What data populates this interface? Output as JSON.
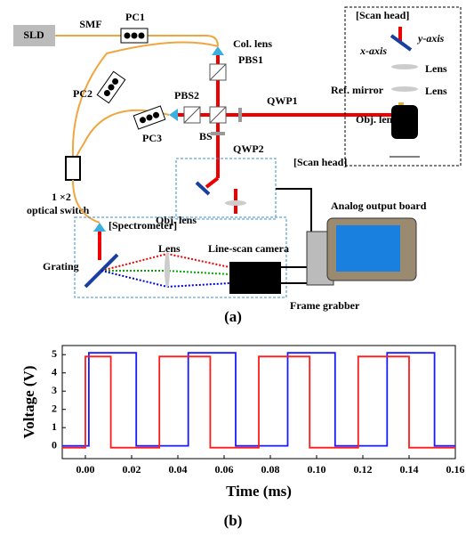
{
  "diagram": {
    "labels": {
      "sld": "SLD",
      "smf": "SMF",
      "pc1": "PC1",
      "pc2": "PC2",
      "pc3": "PC3",
      "col_lens": "Col. lens",
      "pbs1": "PBS1",
      "pbs2": "PBS2",
      "ref_mirror": "Ref. mirror",
      "qwp1": "QWP1",
      "qwp2": "QWP2",
      "bs": "BS",
      "switch_1": "1 ×2",
      "switch_2": "optical switch",
      "obj_lens": "Obj. lens",
      "scan_head": "[Scan head]",
      "spectrometer": "[Spectrometer]",
      "grating": "Grating",
      "lens": "Lens",
      "camera": "Line-scan camera",
      "analog": "Analog output board",
      "frame_grabber": "Frame grabber",
      "caption": "(a)"
    },
    "inset": {
      "title": "[Scan head]",
      "x_axis": "x-axis",
      "y_axis": "y-axis",
      "lens_1": "Lens",
      "lens_2": "Lens",
      "obj_lens": "Obj. lens"
    }
  },
  "chart_data": {
    "type": "line",
    "xlabel": "Time (ms)",
    "ylabel": "Voltage (V)",
    "caption": "(b)",
    "xlim": [
      -0.01,
      0.16
    ],
    "ylim": [
      -0.7,
      5.5
    ],
    "xticks": [
      {
        "value": 0,
        "label": "0.00"
      },
      {
        "value": 0.02,
        "label": "0.02"
      },
      {
        "value": 0.04,
        "label": "0.04"
      },
      {
        "value": 0.06,
        "label": "0.06"
      },
      {
        "value": 0.08,
        "label": "0.08"
      },
      {
        "value": 0.1,
        "label": "0.10"
      },
      {
        "value": 0.12,
        "label": "0.12"
      },
      {
        "value": 0.14,
        "label": "0.14"
      },
      {
        "value": 0.16,
        "label": "0.16"
      }
    ],
    "yticks": [
      0,
      1,
      2,
      3,
      4,
      5
    ],
    "series": [
      {
        "color": "#1a1aff",
        "x": [
          -0.01,
          0.0015,
          0.0015,
          0.022,
          0.022,
          0.0445,
          0.0445,
          0.065,
          0.065,
          0.0875,
          0.0875,
          0.108,
          0.108,
          0.1305,
          0.1305,
          0.151,
          0.151,
          0.16
        ],
        "values": [
          0,
          0,
          5.1,
          5.1,
          0,
          0,
          5.1,
          5.1,
          0,
          0,
          5.1,
          5.1,
          0,
          0,
          5.1,
          5.1,
          0,
          0
        ]
      },
      {
        "color": "#ff1a1a",
        "x": [
          -0.01,
          0,
          0,
          0.011,
          0.011,
          0.032,
          0.032,
          0.054,
          0.054,
          0.075,
          0.075,
          0.097,
          0.097,
          0.118,
          0.118,
          0.14,
          0.14,
          0.16
        ],
        "values": [
          -0.1,
          -0.1,
          4.9,
          4.9,
          -0.1,
          -0.1,
          4.9,
          4.9,
          -0.1,
          -0.1,
          4.9,
          4.9,
          -0.1,
          -0.1,
          4.9,
          4.9,
          -0.1,
          -0.1
        ]
      }
    ]
  }
}
